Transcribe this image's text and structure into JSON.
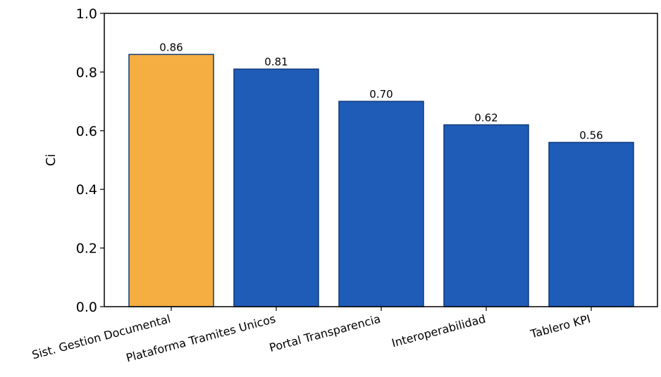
{
  "chart_data": {
    "type": "bar",
    "categories": [
      "Sist. Gestion Documental",
      "Plataforma Tramites Unicos",
      "Portal Transparencia",
      "Interoperabilidad",
      "Tablero KPI"
    ],
    "values": [
      0.86,
      0.81,
      0.7,
      0.62,
      0.56
    ],
    "value_labels": [
      "0.86",
      "0.81",
      "0.70",
      "0.62",
      "0.56"
    ],
    "title": "",
    "xlabel": "",
    "ylabel": "Ci",
    "ylim": [
      0,
      1.0
    ],
    "yticks": [
      0.0,
      0.2,
      0.4,
      0.6,
      0.8,
      1.0
    ],
    "ytick_labels": [
      "0.0",
      "0.2",
      "0.4",
      "0.6",
      "0.8",
      "1.0"
    ],
    "grid": false,
    "colors": {
      "highlight": "#F5AE42",
      "default": "#1F5CB8",
      "edge": "#0F3A7A"
    },
    "highlight_index": 0
  }
}
